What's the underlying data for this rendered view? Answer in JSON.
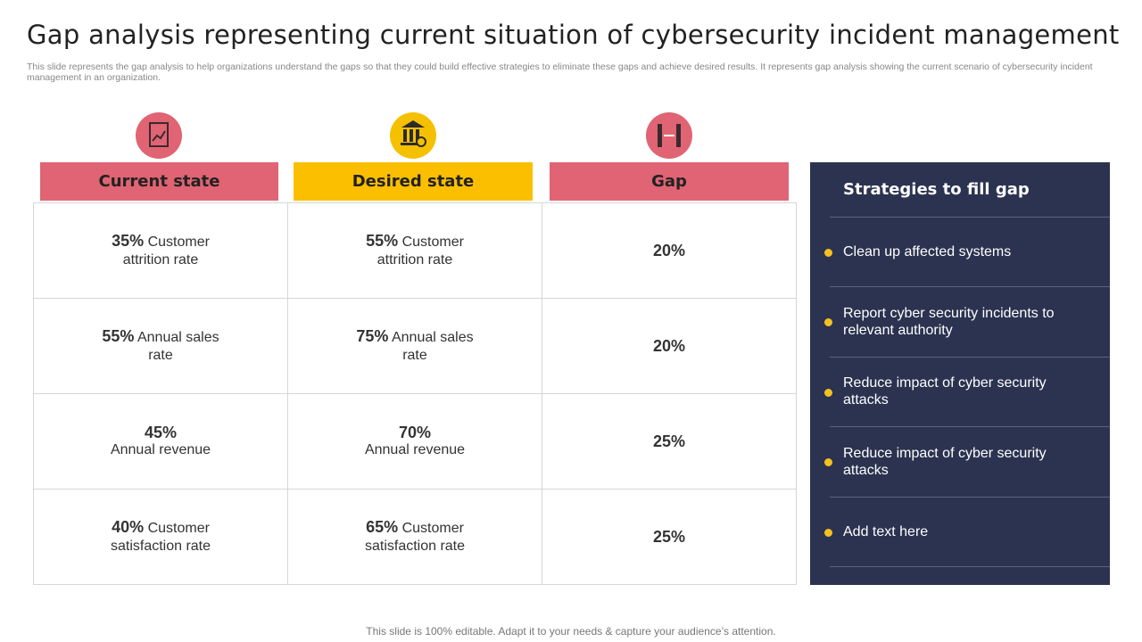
{
  "header": {
    "title": "Gap analysis representing current situation of cybersecurity incident management",
    "subtitle": "This slide represents the gap analysis to help organizations understand the gaps so that they could build effective strategies to eliminate these gaps and achieve desired results. It represents gap analysis showing the current scenario of cybersecurity incident management in an organization."
  },
  "table": {
    "columns": [
      "Current state",
      "Desired state",
      "Gap"
    ],
    "rows": [
      [
        {
          "value": "35%",
          "label": "Customer attrition rate"
        },
        {
          "value": "55%",
          "label": "Customer attrition rate"
        },
        "20%"
      ],
      [
        {
          "value": "55%",
          "label": "Annual sales rate"
        },
        {
          "value": "75%",
          "label": "Annual sales rate"
        },
        "20%"
      ],
      [
        {
          "value": "45%",
          "label": "Annual revenue"
        },
        {
          "value": "70%",
          "label": "Annual revenue"
        },
        "25%"
      ],
      [
        {
          "value": "40%",
          "label": "Customer satisfaction rate"
        },
        {
          "value": "65%",
          "label": "Customer satisfaction rate"
        },
        "25%"
      ]
    ]
  },
  "strategies": {
    "title": "Strategies to fill gap",
    "items": [
      "Clean up affected systems",
      "Report cyber security incidents to relevant authority",
      "Reduce impact of cyber security attacks",
      "Reduce impact of cyber security attacks",
      "Add text here"
    ]
  },
  "footer": "This slide is 100% editable. Adapt it to your needs & capture your audience’s attention."
}
